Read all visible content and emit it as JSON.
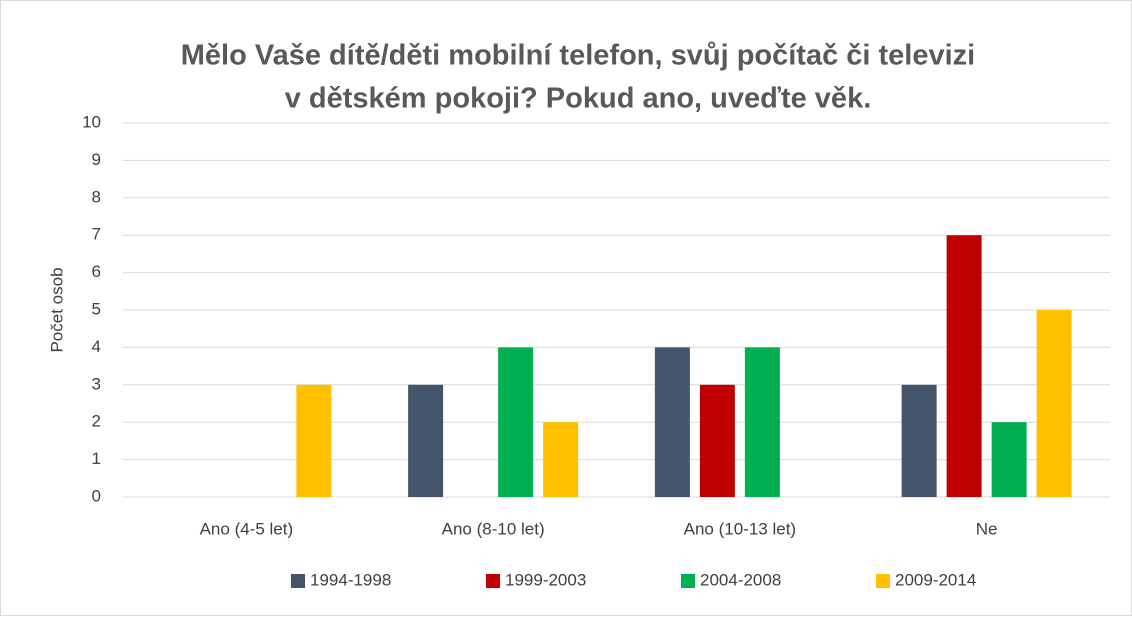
{
  "chart_data": {
    "type": "bar",
    "title": [
      "Mělo Vaše dítě/děti mobilní telefon, svůj počítač či televizi",
      "v dětském pokoji? Pokud ano, uveďte věk."
    ],
    "y_label": "Počet osob",
    "categories": [
      "Ano (4-5 let)",
      "Ano (8-10 let)",
      "Ano (10-13 let)",
      "Ne"
    ],
    "series": [
      {
        "name": "1994-1998",
        "color": "#44546a",
        "values": [
          0,
          3,
          4,
          3
        ]
      },
      {
        "name": "1999-2003",
        "color": "#c00000",
        "values": [
          0,
          0,
          3,
          7
        ]
      },
      {
        "name": "2004-2008",
        "color": "#00b050",
        "values": [
          0,
          4,
          4,
          2
        ]
      },
      {
        "name": "2009-2014",
        "color": "#ffc000",
        "values": [
          3,
          2,
          0,
          5
        ]
      }
    ],
    "ylim": [
      0,
      10
    ],
    "yticks": [
      0,
      1,
      2,
      3,
      4,
      5,
      6,
      7,
      8,
      9,
      10
    ],
    "grid": true,
    "legend": "bottom"
  }
}
